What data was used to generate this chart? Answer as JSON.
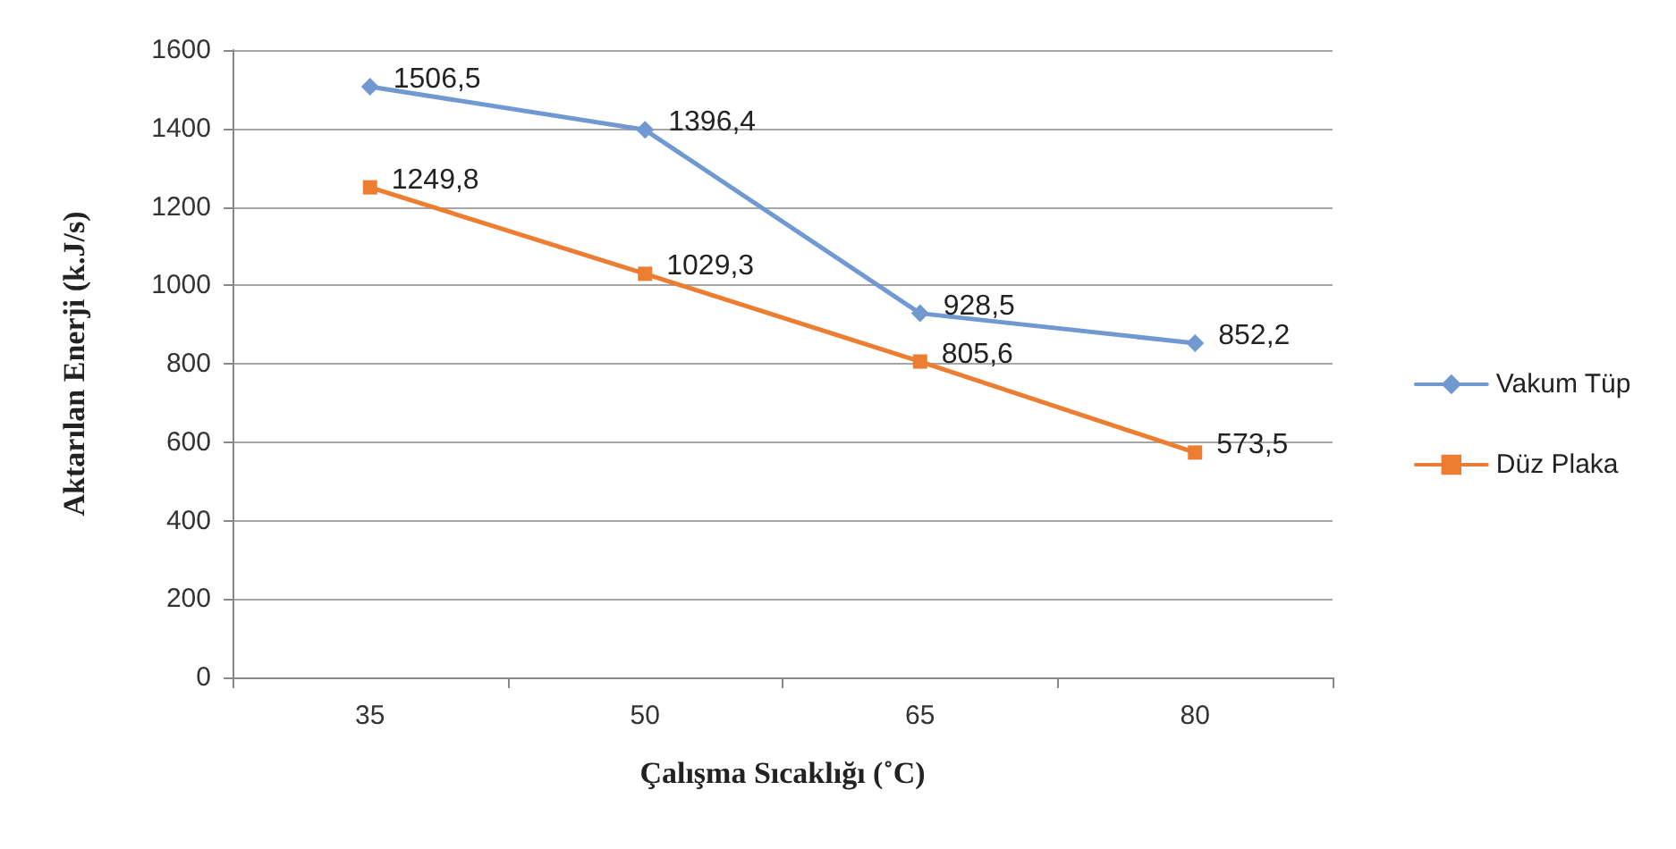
{
  "chart_data": {
    "type": "line",
    "xlabel": "Çalışma Sıcaklığı (˚C)",
    "ylabel": "Aktarılan Enerji (k.J/s)",
    "categories": [
      "35",
      "50",
      "65",
      "80"
    ],
    "series": [
      {
        "name": "Vakum Tüp",
        "color": "#7199d1",
        "marker": "diamond",
        "values": [
          1506.5,
          1396.4,
          928.5,
          852.2
        ],
        "value_labels": [
          "1506,5",
          "1396,4",
          "928,5",
          "852,2"
        ]
      },
      {
        "name": "Düz Plaka",
        "color": "#ed7d31",
        "marker": "square",
        "values": [
          1249.8,
          1029.3,
          805.6,
          573.5
        ],
        "value_labels": [
          "1249,8",
          "1029,3",
          "805,6",
          "573,5"
        ]
      }
    ],
    "ylim": [
      0,
      1600
    ],
    "yticks": [
      0,
      200,
      400,
      600,
      800,
      1000,
      1200,
      1400,
      1600
    ],
    "grid": "y",
    "legend": "right",
    "line_style": "solid"
  }
}
